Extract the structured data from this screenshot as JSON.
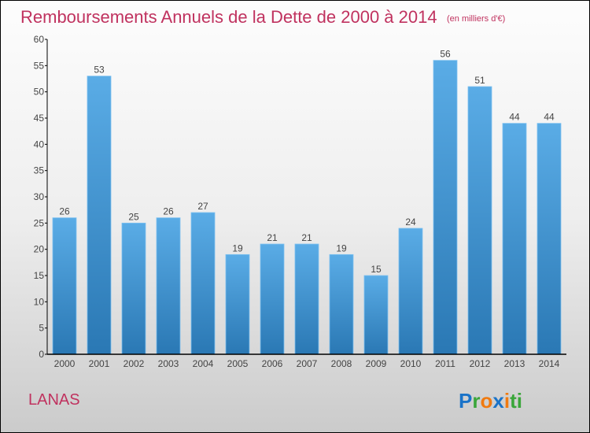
{
  "chart_data": {
    "type": "bar",
    "title": "Remboursements Annuels de la Dette de 2000 à 2014",
    "subtitle": "(en milliers d'€)",
    "xlabel": "",
    "ylabel": "",
    "categories": [
      "2000",
      "2001",
      "2002",
      "2003",
      "2004",
      "2005",
      "2006",
      "2007",
      "2008",
      "2009",
      "2010",
      "2011",
      "2012",
      "2013",
      "2014"
    ],
    "values": [
      26,
      53,
      25,
      26,
      27,
      19,
      21,
      21,
      19,
      15,
      24,
      56,
      51,
      44,
      44
    ],
    "ylim": [
      0,
      60
    ],
    "yticks": [
      0,
      5,
      10,
      15,
      20,
      25,
      30,
      35,
      40,
      45,
      50,
      55,
      60
    ],
    "grid": false,
    "bar_color": "#4a9edd",
    "bar_color_bottom": "#2a78b4"
  },
  "commune": "LANAS",
  "logo": "Proxiti",
  "colors": {
    "title": "#c0325f",
    "commune": "#c0325f"
  }
}
